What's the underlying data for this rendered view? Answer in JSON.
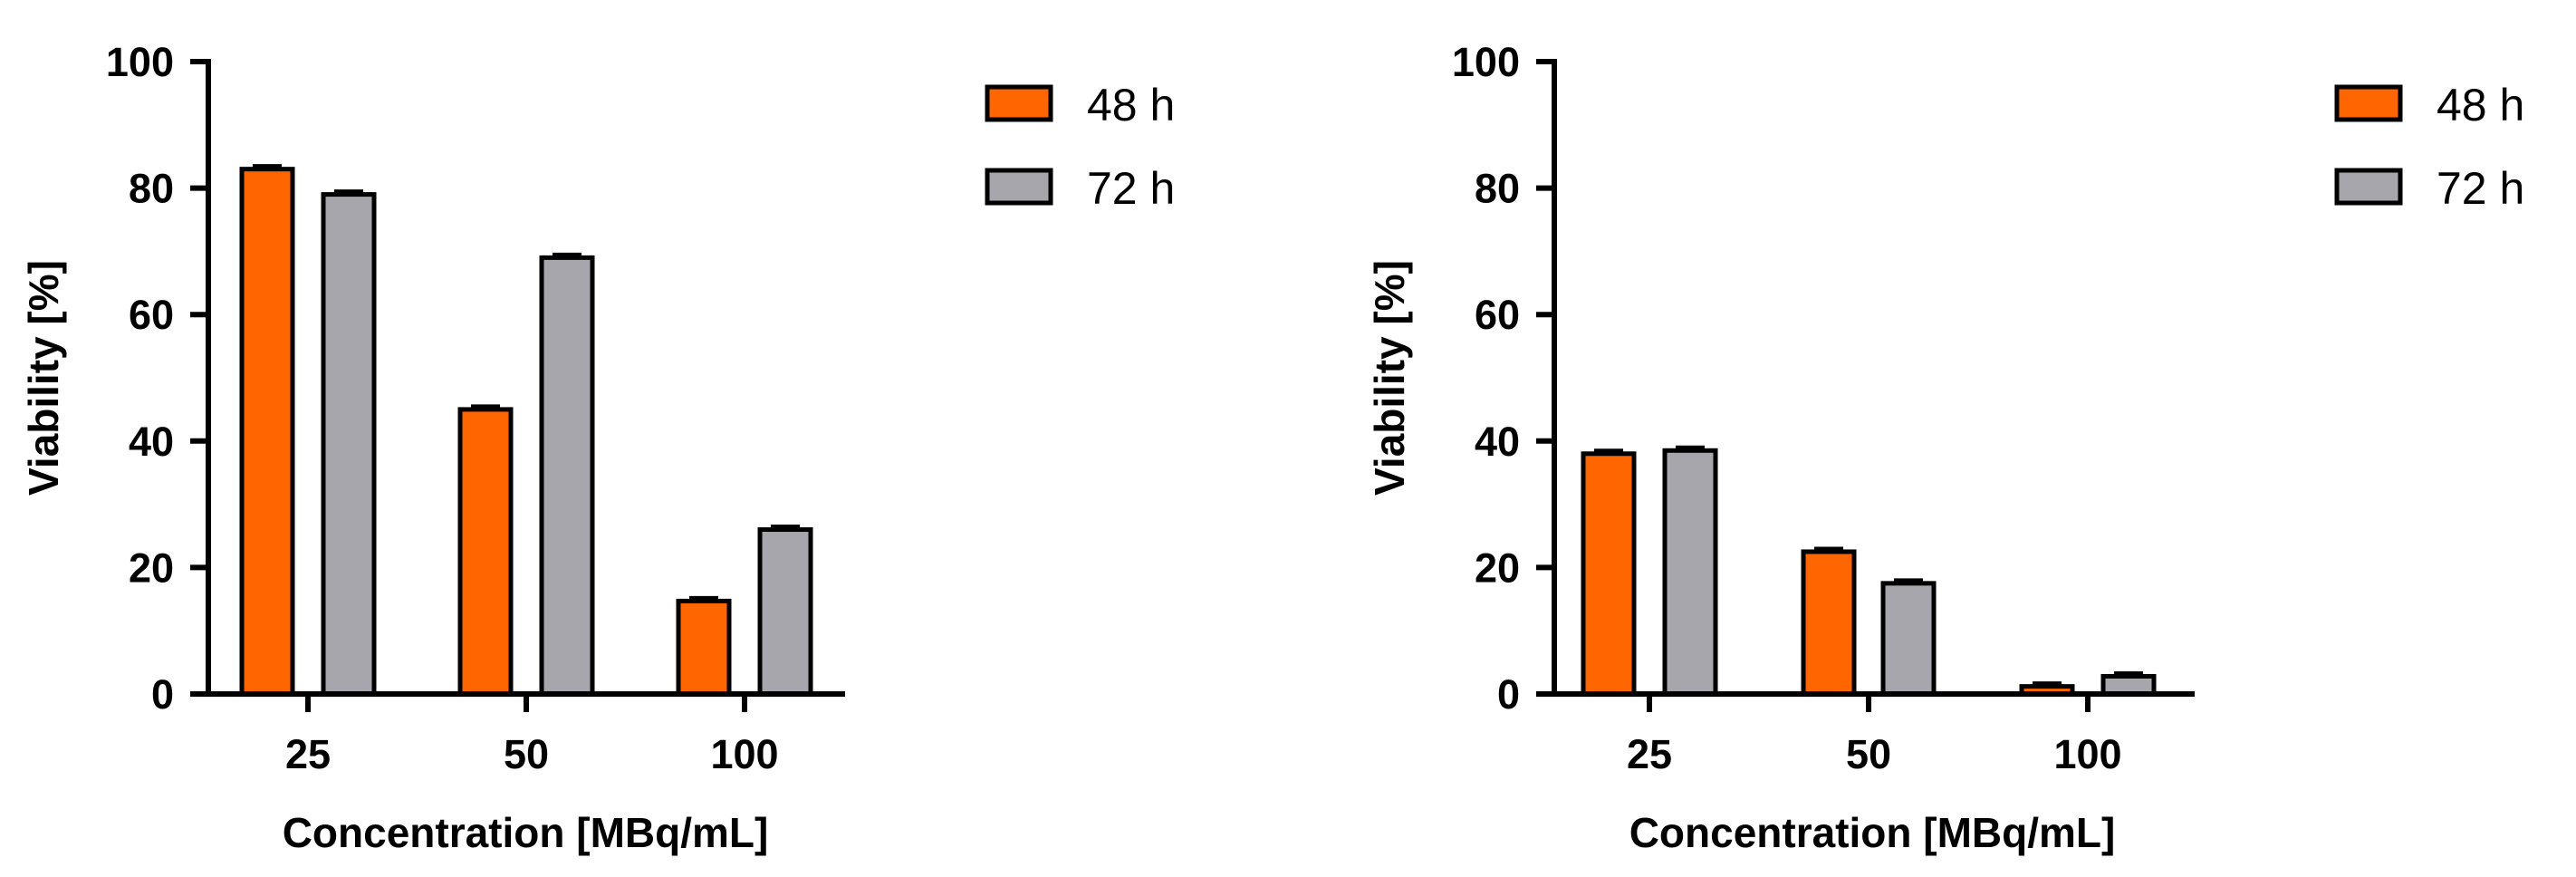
{
  "chart_data": [
    {
      "type": "bar",
      "title": "",
      "xlabel": "Concentration [MBq/mL]",
      "ylabel": "Viability [%]",
      "categories": [
        "25",
        "50",
        "100"
      ],
      "ylim": [
        0,
        100
      ],
      "yticks": [
        "0",
        "20",
        "40",
        "60",
        "80",
        "100"
      ],
      "grid": false,
      "legend_position": "top-right",
      "series": [
        {
          "name": "48 h",
          "color": "#FF6600",
          "values": [
            83,
            45,
            14.7
          ]
        },
        {
          "name": "72 h",
          "color": "#A6A6AC",
          "values": [
            79,
            69,
            26
          ]
        }
      ]
    },
    {
      "type": "bar",
      "title": "",
      "xlabel": "Concentration [MBq/mL]",
      "ylabel": "Viability [%]",
      "categories": [
        "25",
        "50",
        "100"
      ],
      "ylim": [
        0,
        100
      ],
      "yticks": [
        "0",
        "20",
        "40",
        "60",
        "80",
        "100"
      ],
      "grid": false,
      "legend_position": "top-right",
      "series": [
        {
          "name": "48 h",
          "color": "#FF6600",
          "values": [
            38,
            22.5,
            1.2
          ]
        },
        {
          "name": "72 h",
          "color": "#A6A6AC",
          "values": [
            38.5,
            17.5,
            2.8
          ]
        }
      ]
    }
  ]
}
